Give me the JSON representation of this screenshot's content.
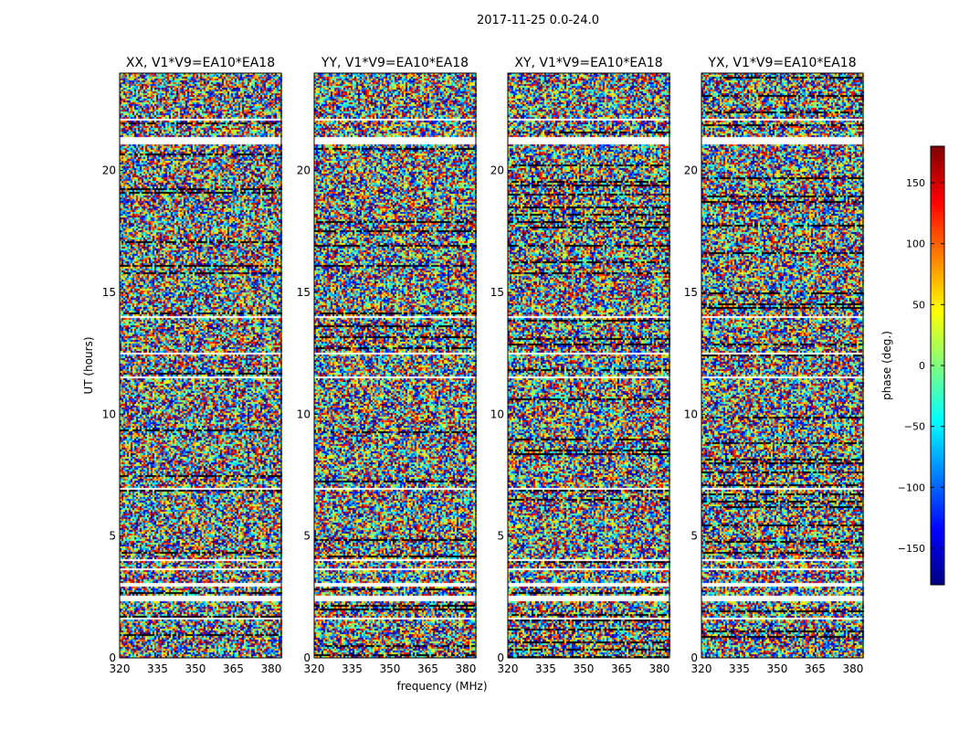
{
  "chart_data": {
    "type": "heatmap",
    "suptitle": "2017-11-25 0.0-24.0",
    "xlabel": "frequency (MHz)",
    "ylabel": "UT (hours)",
    "xlim": [
      320,
      384
    ],
    "ylim": [
      0,
      24
    ],
    "xticks": [
      "320",
      "335",
      "350",
      "365",
      "380"
    ],
    "xtick_values": [
      320,
      335,
      350,
      365,
      380
    ],
    "yticks": [
      "0",
      "5",
      "10",
      "15",
      "20"
    ],
    "ytick_values": [
      0,
      5,
      10,
      15,
      20
    ],
    "panels": [
      {
        "title": "XX, V1*V9=EA10*EA18"
      },
      {
        "title": "YY, V1*V9=EA10*EA18"
      },
      {
        "title": "XY, V1*V9=EA10*EA18"
      },
      {
        "title": "YX, V1*V9=EA10*EA18"
      }
    ],
    "flagged_hours": [
      [
        1.6,
        1.7
      ],
      [
        2.4,
        2.6
      ],
      [
        3.0,
        3.1
      ],
      [
        3.6,
        3.7
      ],
      [
        4.0,
        4.1
      ],
      [
        6.9,
        7.0
      ],
      [
        11.5,
        11.6
      ],
      [
        12.5,
        12.6
      ],
      [
        14.0,
        14.1
      ],
      [
        21.1,
        21.4
      ],
      [
        22.1,
        22.2
      ]
    ],
    "colorbar": {
      "label": "phase (deg.)",
      "range": [
        -180,
        180
      ],
      "colormap": "jet",
      "ticks": [
        "150",
        "100",
        "50",
        "0",
        "−50",
        "−100",
        "−150"
      ],
      "tick_values": [
        150,
        100,
        50,
        0,
        -50,
        -100,
        -150
      ]
    }
  }
}
